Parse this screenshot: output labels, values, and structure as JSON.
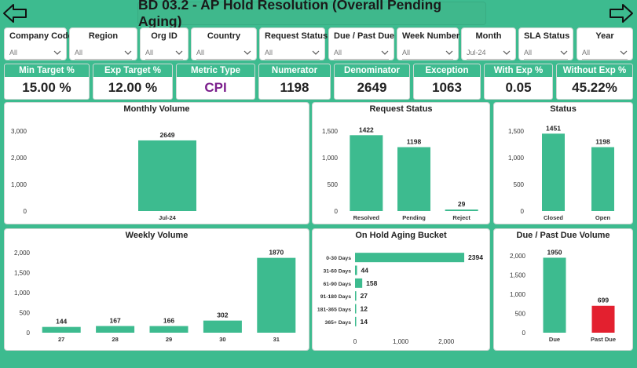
{
  "header": {
    "title": "BD 03.2 - AP Hold Resolution (Overall Pending Aging)"
  },
  "slicers": [
    {
      "label": "Company Code",
      "value": "All"
    },
    {
      "label": "Region",
      "value": "All"
    },
    {
      "label": "Org ID",
      "value": "All"
    },
    {
      "label": "Country",
      "value": "All"
    },
    {
      "label": "Request Status",
      "value": "All"
    },
    {
      "label": "Due / Past Due",
      "value": "All"
    },
    {
      "label": "Week Number",
      "value": "All"
    },
    {
      "label": "Month",
      "value": "Jul-24"
    },
    {
      "label": "SLA Status",
      "value": "All"
    },
    {
      "label": "Year",
      "value": "All"
    }
  ],
  "kpis": [
    {
      "label": "Min Target %",
      "value": "15.00 %"
    },
    {
      "label": "Exp Target %",
      "value": "12.00 %"
    },
    {
      "label": "Metric Type",
      "value": "CPI"
    },
    {
      "label": "Numerator",
      "value": "1198"
    },
    {
      "label": "Denominator",
      "value": "2649"
    },
    {
      "label": "Exception",
      "value": "1063"
    },
    {
      "label": "With Exp %",
      "value": "0.05"
    },
    {
      "label": "Without Exp %",
      "value": "45.22%"
    }
  ],
  "colors": {
    "bar": "#3dbb8f",
    "past_due": "#e3202f",
    "axis_text": "#333333"
  },
  "chart_data": [
    {
      "id": "monthly",
      "type": "bar",
      "title": "Monthly Volume",
      "categories": [
        "Jul-24"
      ],
      "values": [
        2649
      ],
      "ylim": [
        0,
        3000
      ],
      "yticks": [
        "0",
        "1,000",
        "2,000",
        "3,000"
      ]
    },
    {
      "id": "request",
      "type": "bar",
      "title": "Request Status",
      "categories": [
        "Resolved",
        "Pending",
        "Reject"
      ],
      "values": [
        1422,
        1198,
        29
      ],
      "ylim": [
        0,
        1500
      ],
      "yticks": [
        "0",
        "500",
        "1,000",
        "1,500"
      ]
    },
    {
      "id": "status",
      "type": "bar",
      "title": "Status",
      "categories": [
        "Closed",
        "Open"
      ],
      "values": [
        1451,
        1198
      ],
      "ylim": [
        0,
        1500
      ],
      "yticks": [
        "0",
        "500",
        "1,000",
        "1,500"
      ]
    },
    {
      "id": "weekly",
      "type": "bar",
      "title": "Weekly Volume",
      "categories": [
        "27",
        "28",
        "29",
        "30",
        "31"
      ],
      "values": [
        144,
        167,
        166,
        302,
        1870
      ],
      "ylim": [
        0,
        2000
      ],
      "yticks": [
        "0",
        "500",
        "1,000",
        "1,500",
        "2,000"
      ]
    },
    {
      "id": "aging",
      "type": "hbar",
      "title": "On Hold Aging Bucket",
      "categories": [
        "0-30 Days",
        "31-60 Days",
        "61-90 Days",
        "91-180 Days",
        "181-365 Days",
        "365+ Days"
      ],
      "values": [
        2394,
        44,
        158,
        27,
        12,
        14
      ],
      "xlim": [
        0,
        2600
      ],
      "xticks": [
        "0",
        "1,000",
        "2,000"
      ]
    },
    {
      "id": "due",
      "type": "bar",
      "title": "Due / Past Due Volume",
      "categories": [
        "Due",
        "Past Due"
      ],
      "values": [
        1950,
        699
      ],
      "ylim": [
        0,
        2000
      ],
      "yticks": [
        "0",
        "500",
        "1,000",
        "1,500",
        "2,000"
      ]
    }
  ]
}
